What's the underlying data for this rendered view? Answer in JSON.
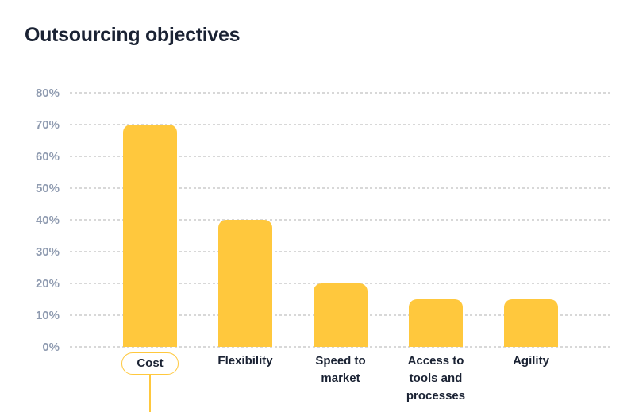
{
  "title": "Outsourcing objectives",
  "chart_data": {
    "type": "bar",
    "title": "Outsourcing objectives",
    "categories": [
      "Cost",
      "Flexibility",
      "Speed to market",
      "Access to tools and processes",
      "Agility"
    ],
    "values": [
      70,
      40,
      20,
      15,
      15
    ],
    "value_unit": "%",
    "ytick_labels": [
      "80%",
      "70%",
      "60%",
      "50%",
      "40%",
      "30%",
      "20%",
      "10%",
      "0%"
    ],
    "ytick_values": [
      80,
      70,
      60,
      50,
      40,
      30,
      20,
      10,
      0
    ],
    "ylim": [
      0,
      80
    ],
    "xlabel": "",
    "ylabel": "",
    "grid": "horizontal-dotted",
    "legend": "none",
    "highlighted_category": "Cost",
    "colors": {
      "bar": "#ffc83d",
      "title_text": "#1a2233",
      "category_text": "#1a2233",
      "ytick_text": "#8f9bb0",
      "gridline": "#d8d8d8",
      "pill_border": "#ffc83d",
      "pill_background": "#ffffff",
      "background": "#ffffff"
    }
  }
}
